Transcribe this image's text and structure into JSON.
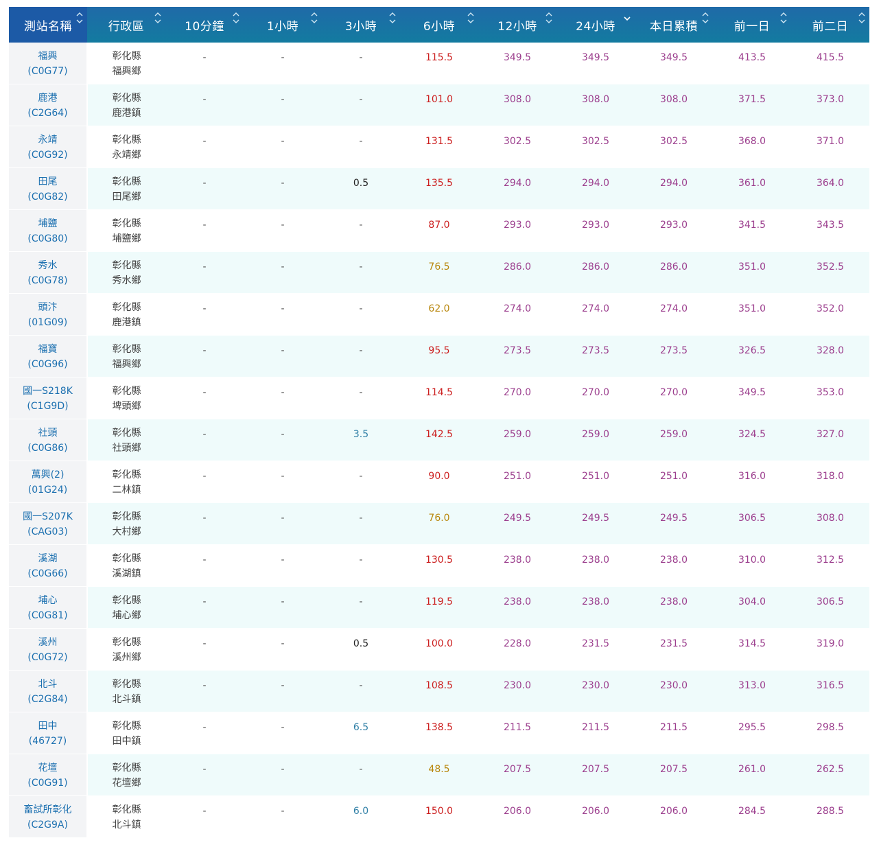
{
  "headers": [
    "測站名稱",
    "行政區",
    "10分鐘",
    "1小時",
    "3小時",
    "6小時",
    "12小時",
    "24小時",
    "本日累積",
    "前一日",
    "前二日"
  ],
  "sorted_column_index": 7,
  "rows": [
    {
      "name": "福興",
      "code": "(C0G77)",
      "county": "彰化縣",
      "town": "福興鄉",
      "m10": "-",
      "h1": "-",
      "h3": "-",
      "h6": "115.5",
      "h12": "349.5",
      "h24": "349.5",
      "today": "349.5",
      "d1": "413.5",
      "d2": "415.5"
    },
    {
      "name": "鹿港",
      "code": "(C2G64)",
      "county": "彰化縣",
      "town": "鹿港鎮",
      "m10": "-",
      "h1": "-",
      "h3": "-",
      "h6": "101.0",
      "h12": "308.0",
      "h24": "308.0",
      "today": "308.0",
      "d1": "371.5",
      "d2": "373.0"
    },
    {
      "name": "永靖",
      "code": "(C0G92)",
      "county": "彰化縣",
      "town": "永靖鄉",
      "m10": "-",
      "h1": "-",
      "h3": "-",
      "h6": "131.5",
      "h12": "302.5",
      "h24": "302.5",
      "today": "302.5",
      "d1": "368.0",
      "d2": "371.0"
    },
    {
      "name": "田尾",
      "code": "(C0G82)",
      "county": "彰化縣",
      "town": "田尾鄉",
      "m10": "-",
      "h1": "-",
      "h3": "0.5",
      "h6": "135.5",
      "h12": "294.0",
      "h24": "294.0",
      "today": "294.0",
      "d1": "361.0",
      "d2": "364.0"
    },
    {
      "name": "埔鹽",
      "code": "(C0G80)",
      "county": "彰化縣",
      "town": "埔鹽鄉",
      "m10": "-",
      "h1": "-",
      "h3": "-",
      "h6": "87.0",
      "h12": "293.0",
      "h24": "293.0",
      "today": "293.0",
      "d1": "341.5",
      "d2": "343.5"
    },
    {
      "name": "秀水",
      "code": "(C0G78)",
      "county": "彰化縣",
      "town": "秀水鄉",
      "m10": "-",
      "h1": "-",
      "h3": "-",
      "h6": "76.5",
      "h12": "286.0",
      "h24": "286.0",
      "today": "286.0",
      "d1": "351.0",
      "d2": "352.5"
    },
    {
      "name": "頭汴",
      "code": "(01G09)",
      "county": "彰化縣",
      "town": "鹿港鎮",
      "m10": "-",
      "h1": "-",
      "h3": "-",
      "h6": "62.0",
      "h12": "274.0",
      "h24": "274.0",
      "today": "274.0",
      "d1": "351.0",
      "d2": "352.0"
    },
    {
      "name": "福寶",
      "code": "(C0G96)",
      "county": "彰化縣",
      "town": "福興鄉",
      "m10": "-",
      "h1": "-",
      "h3": "-",
      "h6": "95.5",
      "h12": "273.5",
      "h24": "273.5",
      "today": "273.5",
      "d1": "326.5",
      "d2": "328.0"
    },
    {
      "name": "國一S218K",
      "code": "(C1G9D)",
      "county": "彰化縣",
      "town": "埤頭鄉",
      "m10": "-",
      "h1": "-",
      "h3": "-",
      "h6": "114.5",
      "h12": "270.0",
      "h24": "270.0",
      "today": "270.0",
      "d1": "349.5",
      "d2": "353.0"
    },
    {
      "name": "社頭",
      "code": "(C0G86)",
      "county": "彰化縣",
      "town": "社頭鄉",
      "m10": "-",
      "h1": "-",
      "h3": "3.5",
      "h6": "142.5",
      "h12": "259.0",
      "h24": "259.0",
      "today": "259.0",
      "d1": "324.5",
      "d2": "327.0"
    },
    {
      "name": "萬興(2)",
      "code": "(01G24)",
      "county": "彰化縣",
      "town": "二林鎮",
      "m10": "-",
      "h1": "-",
      "h3": "-",
      "h6": "90.0",
      "h12": "251.0",
      "h24": "251.0",
      "today": "251.0",
      "d1": "316.0",
      "d2": "318.0"
    },
    {
      "name": "國一S207K",
      "code": "(CAG03)",
      "county": "彰化縣",
      "town": "大村鄉",
      "m10": "-",
      "h1": "-",
      "h3": "-",
      "h6": "76.0",
      "h12": "249.5",
      "h24": "249.5",
      "today": "249.5",
      "d1": "306.5",
      "d2": "308.0"
    },
    {
      "name": "溪湖",
      "code": "(C0G66)",
      "county": "彰化縣",
      "town": "溪湖鎮",
      "m10": "-",
      "h1": "-",
      "h3": "-",
      "h6": "130.5",
      "h12": "238.0",
      "h24": "238.0",
      "today": "238.0",
      "d1": "310.0",
      "d2": "312.5"
    },
    {
      "name": "埔心",
      "code": "(C0G81)",
      "county": "彰化縣",
      "town": "埔心鄉",
      "m10": "-",
      "h1": "-",
      "h3": "-",
      "h6": "119.5",
      "h12": "238.0",
      "h24": "238.0",
      "today": "238.0",
      "d1": "304.0",
      "d2": "306.5"
    },
    {
      "name": "溪州",
      "code": "(C0G72)",
      "county": "彰化縣",
      "town": "溪州鄉",
      "m10": "-",
      "h1": "-",
      "h3": "0.5",
      "h6": "100.0",
      "h12": "228.0",
      "h24": "231.5",
      "today": "231.5",
      "d1": "314.5",
      "d2": "319.0"
    },
    {
      "name": "北斗",
      "code": "(C2G84)",
      "county": "彰化縣",
      "town": "北斗鎮",
      "m10": "-",
      "h1": "-",
      "h3": "-",
      "h6": "108.5",
      "h12": "230.0",
      "h24": "230.0",
      "today": "230.0",
      "d1": "313.0",
      "d2": "316.5"
    },
    {
      "name": "田中",
      "code": "(46727)",
      "county": "彰化縣",
      "town": "田中鎮",
      "m10": "-",
      "h1": "-",
      "h3": "6.5",
      "h6": "138.5",
      "h12": "211.5",
      "h24": "211.5",
      "today": "211.5",
      "d1": "295.5",
      "d2": "298.5"
    },
    {
      "name": "花壇",
      "code": "(C0G91)",
      "county": "彰化縣",
      "town": "花壇鄉",
      "m10": "-",
      "h1": "-",
      "h3": "-",
      "h6": "48.5",
      "h12": "207.5",
      "h24": "207.5",
      "today": "207.5",
      "d1": "261.0",
      "d2": "262.5"
    },
    {
      "name": "畜試所彰化",
      "code": "(C2G9A)",
      "county": "彰化縣",
      "town": "北斗鎮",
      "m10": "-",
      "h1": "-",
      "h3": "6.0",
      "h6": "150.0",
      "h12": "206.0",
      "h24": "206.0",
      "today": "206.0",
      "d1": "284.5",
      "d2": "288.5"
    }
  ],
  "colors": {
    "header_bg": "#1b6fa3",
    "dash": "#555555",
    "low": "#222222",
    "blue": "#2f7fa6",
    "red": "#cc1f1f",
    "orange": "#b8860b",
    "purple": "#9c3f8e",
    "station_link": "#1c70b0",
    "row_alt": "#effbfb",
    "name_cell": "#f3f4f6"
  },
  "icons": {
    "sortable": "sort-updown-icon",
    "sorted_desc": "sort-down-icon"
  }
}
